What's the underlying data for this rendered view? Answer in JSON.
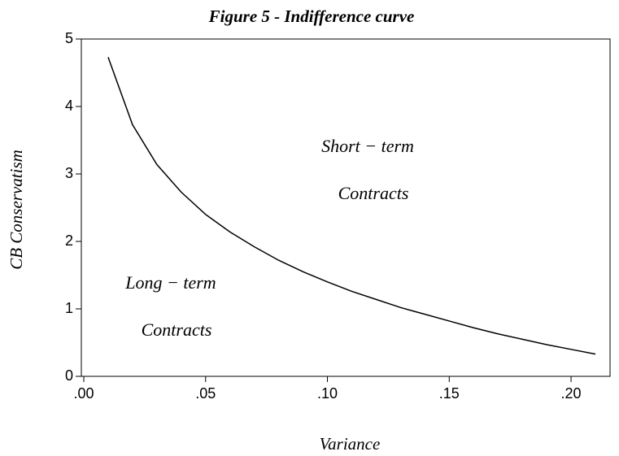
{
  "chart_data": {
    "type": "line",
    "title": "Figure 5 - Indifference curve",
    "x_label": "Variance",
    "y_label": "CB Conservatism",
    "annotations": [
      "Short − term",
      "Contracts",
      "Long − term",
      "Contracts"
    ],
    "x": [
      0.01,
      0.02,
      0.03,
      0.04,
      0.05,
      0.06,
      0.07,
      0.08,
      0.09,
      0.1,
      0.11,
      0.12,
      0.13,
      0.14,
      0.15,
      0.16,
      0.17,
      0.18,
      0.19,
      0.2,
      0.21
    ],
    "series": [
      {
        "color": "#000000",
        "values": [
          4.73,
          3.73,
          3.14,
          2.73,
          2.4,
          2.14,
          1.92,
          1.72,
          1.55,
          1.4,
          1.26,
          1.14,
          1.02,
          0.92,
          0.82,
          0.72,
          0.63,
          0.55,
          0.47,
          0.4,
          0.33
        ]
      }
    ],
    "xlim": [
      -0.001,
      0.216
    ],
    "ylim": [
      0,
      5
    ],
    "xticks": [
      {
        "value": 0,
        "label": ".00"
      },
      {
        "value": 0.05,
        "label": ".05"
      },
      {
        "value": 0.1,
        "label": ".10"
      },
      {
        "value": 0.15,
        "label": ".15"
      },
      {
        "value": 0.2,
        "label": ".20"
      }
    ],
    "yticks": [
      0,
      1,
      2,
      3,
      4,
      5
    ],
    "grid": false
  }
}
